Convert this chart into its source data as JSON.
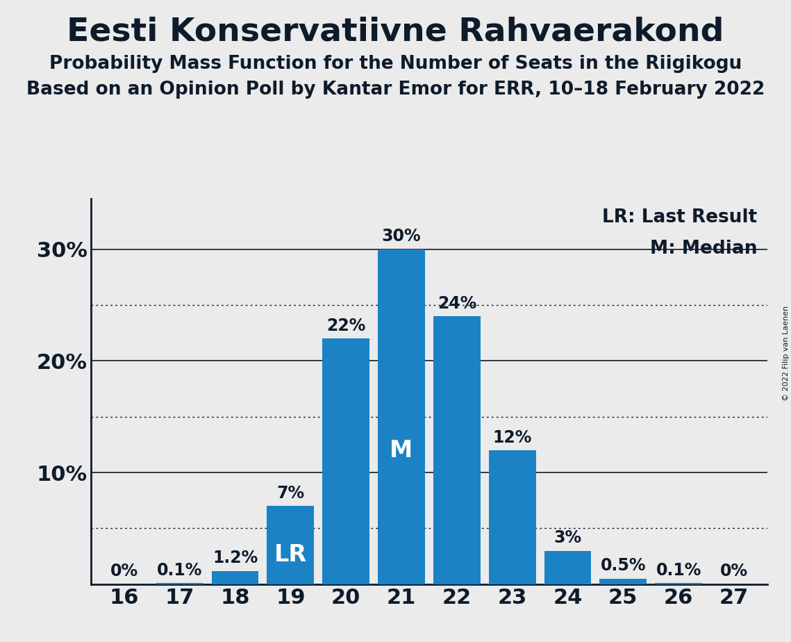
{
  "title": "Eesti Konservatiivne Rahvaerakond",
  "subtitle1": "Probability Mass Function for the Number of Seats in the Riigikogu",
  "subtitle2": "Based on an Opinion Poll by Kantar Emor for ERR, 10–18 February 2022",
  "copyright": "© 2022 Filip van Laenen",
  "seats": [
    16,
    17,
    18,
    19,
    20,
    21,
    22,
    23,
    24,
    25,
    26,
    27
  ],
  "probabilities": [
    0.0,
    0.001,
    0.012,
    0.07,
    0.22,
    0.3,
    0.24,
    0.12,
    0.03,
    0.005,
    0.001,
    0.0
  ],
  "bar_labels": [
    "0%",
    "0.1%",
    "1.2%",
    "7%",
    "22%",
    "30%",
    "24%",
    "12%",
    "3%",
    "0.5%",
    "0.1%",
    "0%"
  ],
  "bar_color": "#1b82c5",
  "background_color": "#ebebeb",
  "text_color": "#0d1b2a",
  "lr_seat": 19,
  "median_seat": 21,
  "legend_lr": "LR: Last Result",
  "legend_m": "M: Median",
  "yticks": [
    0.1,
    0.2,
    0.3
  ],
  "ytick_labels": [
    "10%",
    "20%",
    "30%"
  ],
  "solid_yticks": [
    0.1,
    0.2,
    0.3
  ],
  "dotted_yticks": [
    0.05,
    0.15,
    0.25
  ],
  "ylim": [
    0,
    0.345
  ],
  "title_fontsize": 34,
  "subtitle_fontsize": 19,
  "axis_tick_fontsize": 22,
  "bar_label_fontsize": 17,
  "marker_fontsize": 24,
  "legend_fontsize": 19
}
